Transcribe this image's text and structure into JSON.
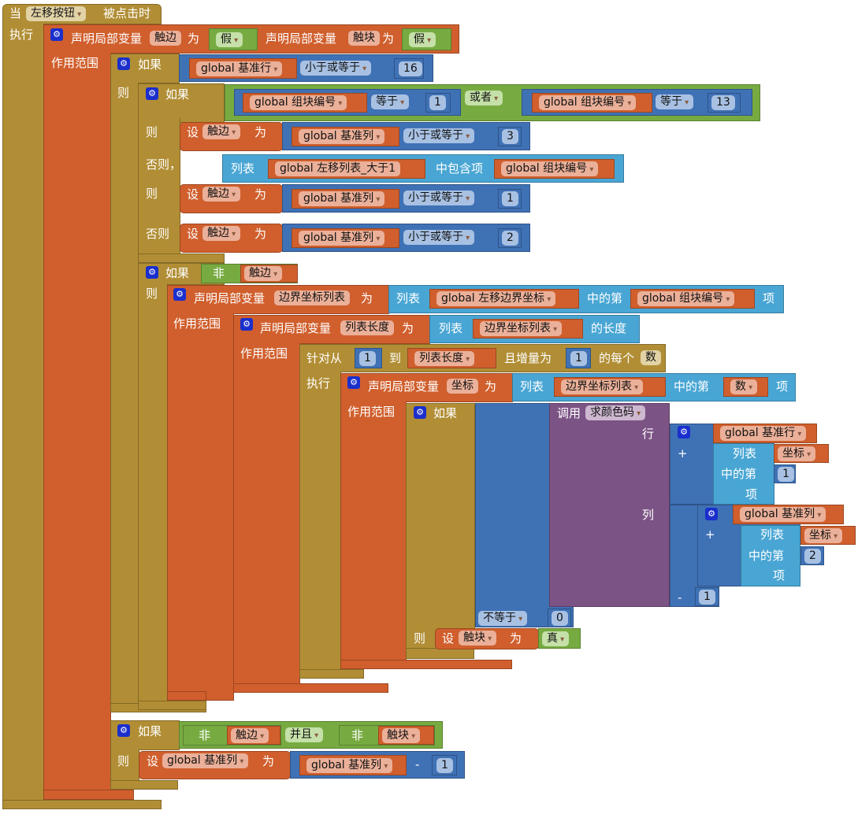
{
  "event": {
    "when": "当",
    "component": "左移按钮",
    "clicked": "被点击时",
    "do": "执行"
  },
  "declare1": {
    "label": "声明局部变量",
    "var1": "触边",
    "as": "为",
    "val1": "假",
    "label2": "声明局部变量",
    "var2": "触块",
    "as2": "为",
    "val2": "假",
    "scope": "作用范围"
  },
  "if1": {
    "if": "如果",
    "then": "则",
    "var": "global 基准行",
    "op": "小于或等于",
    "num": "16"
  },
  "if2": {
    "if": "如果",
    "then": "则",
    "elseif": "否则，如果",
    "then2": "则",
    "else": "否则",
    "cmpA": {
      "var": "global 组块编号",
      "op": "等于",
      "num": "1"
    },
    "or": "或者",
    "cmpB": {
      "var": "global 组块编号",
      "op": "等于",
      "num": "13"
    },
    "set1": {
      "set": "设",
      "var": "触边",
      "to": "为",
      "get": "global 基准列",
      "op": "小于或等于",
      "num": "3"
    },
    "contains": {
      "list": "列表",
      "listvar": "global 左移列表_大于1",
      "contains": "中包含项",
      "item": "global 组块编号"
    },
    "set2": {
      "set": "设",
      "var": "触边",
      "to": "为",
      "get": "global 基准列",
      "op": "小于或等于",
      "num": "1"
    },
    "set3": {
      "set": "设",
      "var": "触边",
      "to": "为",
      "get": "global 基准列",
      "op": "小于或等于",
      "num": "2"
    }
  },
  "if3": {
    "if": "如果",
    "not": "非",
    "var": "触边",
    "then": "则"
  },
  "declare2": {
    "label": "声明局部变量",
    "var": "边界坐标列表",
    "as": "为",
    "list": "列表",
    "listvar": "global 左移边界坐标",
    "index": "中的第",
    "idx": "global 组块编号",
    "item": "项",
    "scope": "作用范围"
  },
  "declare3": {
    "label": "声明局部变量",
    "var": "列表长度",
    "as": "为",
    "list": "列表",
    "listvar": "边界坐标列表",
    "length": "的长度",
    "scope": "作用范围"
  },
  "forloop": {
    "from": "针对从",
    "start": "1",
    "to": "到",
    "end": "列表长度",
    "by": "且增量为",
    "step": "1",
    "each": "的每个",
    "var": "数",
    "do": "执行"
  },
  "declare4": {
    "label": "声明局部变量",
    "var": "坐标",
    "as": "为",
    "list": "列表",
    "listvar": "边界坐标列表",
    "index": "中的第",
    "idx": "数",
    "item": "项",
    "scope": "作用范围"
  },
  "if4": {
    "if": "如果",
    "then": "则",
    "call": "调用",
    "proc": "求颜色码",
    "row": "行",
    "col": "列",
    "neq": "不等于",
    "zero": "0",
    "rowsum": {
      "plus": "+",
      "var": "global 基准行",
      "list": "列表",
      "listvar": "坐标",
      "index": "中的第",
      "num": "1",
      "item": "项"
    },
    "colsum": {
      "minus": "-",
      "plus": "+",
      "var": "global 基准列",
      "list": "列表",
      "listvar": "坐标",
      "index": "中的第",
      "num": "2",
      "item": "项",
      "sub": "1"
    },
    "set": {
      "set": "设",
      "var": "触块",
      "to": "为",
      "val": "真"
    }
  },
  "if5": {
    "if": "如果",
    "then": "则",
    "not1": "非",
    "var1": "触边",
    "and": "并且",
    "not2": "非",
    "var2": "触块",
    "set": {
      "set": "设",
      "var": "global 基准列",
      "to": "为",
      "get": "global 基准列",
      "minus": "-",
      "num": "1"
    }
  }
}
